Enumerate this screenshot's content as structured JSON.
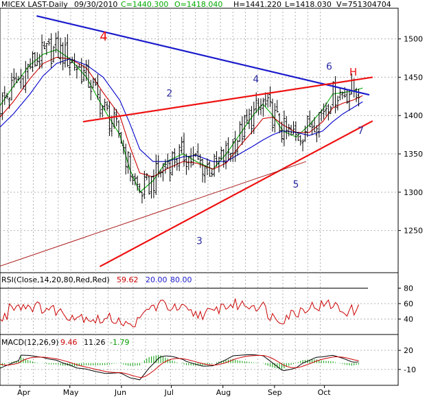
{
  "header": {
    "symbol": "MICEX LAST-Daily",
    "date": "09/30/2010",
    "close": "C=1440.300",
    "open": "O=1418.040",
    "high": "H=1441.220",
    "low": "L=1418.030",
    "volume": "V=751304704"
  },
  "colors": {
    "candle": "#000000",
    "ma_fast": "#00aa00",
    "ma_mid": "#cc0000",
    "ma_slow": "#0000cc",
    "trend_blue": "#1a1acc",
    "trend_red": "#ee1111",
    "trend_thin": "#aa1a1a",
    "grid": "#b0b0b0",
    "rsi_line": "#cc0000",
    "macd_line": "#000000",
    "macd_signal": "#cc0000",
    "macd_hist": "#009900"
  },
  "chart_data": [
    {
      "type": "candlestick",
      "panel": "price",
      "ylim": [
        1195,
        1540
      ],
      "yticks": [
        1250,
        1300,
        1350,
        1400,
        1450,
        1500
      ],
      "xticks": [
        "Apr",
        "May",
        "Jun",
        "Jul",
        "Aug",
        "Sep",
        "Oct"
      ],
      "moving_averages": [
        {
          "color": "green",
          "points": [
            [
              -12,
              1413
            ],
            [
              -4,
              1438
            ],
            [
              6,
              1466
            ],
            [
              14,
              1480
            ],
            [
              22,
              1486
            ],
            [
              30,
              1474
            ],
            [
              40,
              1450
            ],
            [
              50,
              1410
            ],
            [
              60,
              1375
            ],
            [
              66,
              1330
            ],
            [
              72,
              1300
            ],
            [
              80,
              1315
            ],
            [
              88,
              1340
            ],
            [
              98,
              1350
            ],
            [
              106,
              1340
            ],
            [
              116,
              1330
            ],
            [
              124,
              1350
            ],
            [
              132,
              1375
            ],
            [
              140,
              1400
            ],
            [
              146,
              1415
            ],
            [
              152,
              1400
            ],
            [
              158,
              1380
            ],
            [
              166,
              1372
            ],
            [
              174,
              1388
            ],
            [
              182,
              1408
            ],
            [
              188,
              1428
            ],
            [
              194,
              1430
            ],
            [
              200,
              1432
            ],
            [
              206,
              1436
            ]
          ]
        },
        {
          "color": "red",
          "points": [
            [
              -12,
              1398
            ],
            [
              -4,
              1418
            ],
            [
              6,
              1448
            ],
            [
              14,
              1468
            ],
            [
              22,
              1476
            ],
            [
              30,
              1474
            ],
            [
              40,
              1462
            ],
            [
              50,
              1430
            ],
            [
              60,
              1400
            ],
            [
              66,
              1360
            ],
            [
              72,
              1325
            ],
            [
              80,
              1320
            ],
            [
              88,
              1330
            ],
            [
              98,
              1340
            ],
            [
              106,
              1338
            ],
            [
              116,
              1330
            ],
            [
              124,
              1338
            ],
            [
              132,
              1360
            ],
            [
              140,
              1380
            ],
            [
              146,
              1396
            ],
            [
              152,
              1398
            ],
            [
              158,
              1388
            ],
            [
              166,
              1378
            ],
            [
              174,
              1378
            ],
            [
              182,
              1392
            ],
            [
              188,
              1410
            ],
            [
              194,
              1416
            ],
            [
              200,
              1420
            ],
            [
              206,
              1426
            ]
          ]
        },
        {
          "color": "blue",
          "points": [
            [
              -12,
              1385
            ],
            [
              -4,
              1402
            ],
            [
              6,
              1428
            ],
            [
              14,
              1452
            ],
            [
              22,
              1468
            ],
            [
              30,
              1474
            ],
            [
              40,
              1466
            ],
            [
              50,
              1450
            ],
            [
              60,
              1420
            ],
            [
              66,
              1390
            ],
            [
              72,
              1356
            ],
            [
              80,
              1340
            ],
            [
              88,
              1340
            ],
            [
              98,
              1346
            ],
            [
              106,
              1348
            ],
            [
              116,
              1340
            ],
            [
              124,
              1340
            ],
            [
              132,
              1350
            ],
            [
              140,
              1360
            ],
            [
              146,
              1368
            ],
            [
              152,
              1375
            ],
            [
              158,
              1380
            ],
            [
              166,
              1378
            ],
            [
              174,
              1374
            ],
            [
              182,
              1380
            ],
            [
              188,
              1392
            ],
            [
              194,
              1402
            ],
            [
              200,
              1410
            ],
            [
              206,
              1418
            ]
          ]
        }
      ],
      "trendlines": [
        {
          "color": "blue",
          "from": [
            10,
            1530
          ],
          "to": [
            210,
            1427
          ]
        },
        {
          "color": "red",
          "from": [
            38,
            1392
          ],
          "to": [
            212,
            1450
          ]
        },
        {
          "color": "red",
          "from": [
            48,
            1203
          ],
          "to": [
            212,
            1393
          ]
        },
        {
          "color": "darkred",
          "from": [
            -14,
            1202
          ],
          "to": [
            172,
            1340
          ]
        }
      ],
      "annotations": [
        "4",
        "2",
        "4",
        "6",
        "H",
        "3",
        "5",
        "7"
      ]
    },
    {
      "type": "line",
      "panel": "rsi",
      "title": "RSI(Close,14,20,80,Red,Red)",
      "values_text": {
        "rsi": "59.62",
        "low": "20.00",
        "high": "80.00"
      },
      "ylim": [
        20,
        100
      ],
      "yticks": [
        40,
        60,
        80
      ]
    },
    {
      "type": "line",
      "panel": "macd",
      "title": "MACD(12,26,9)",
      "values_text": {
        "macd": "9.46",
        "signal": "11.26",
        "hist": "-1.79"
      },
      "ylim": [
        -35,
        45
      ],
      "yticks": [
        20,
        -10
      ]
    }
  ]
}
